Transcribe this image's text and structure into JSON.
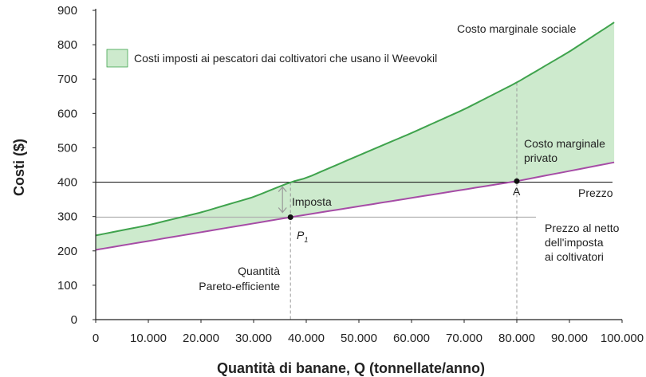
{
  "colors": {
    "social_curve": "#3fa34d",
    "private_curve": "#a64ca6",
    "shaded_area": "#cdeacd",
    "shaded_area_border": "#3fa34d",
    "price_line": "#222222",
    "net_price_line": "#b0b0b0",
    "dashed_line": "#999999",
    "arrow": "#999999"
  },
  "chart_data": {
    "type": "line",
    "xlabel": "Quantità di banane, Q (tonnellate/anno)",
    "ylabel": "Costi ($)",
    "xlim": [
      0,
      100000
    ],
    "ylim": [
      0,
      900
    ],
    "x_ticks": [
      0,
      10000,
      20000,
      30000,
      40000,
      50000,
      60000,
      70000,
      80000,
      90000,
      100000
    ],
    "x_tick_labels": [
      "0",
      "10.000",
      "20.000",
      "30.000",
      "40.000",
      "50.000",
      "60.000",
      "70.000",
      "80.000",
      "90.000",
      "100.000"
    ],
    "y_ticks": [
      0,
      100,
      200,
      300,
      400,
      500,
      600,
      700,
      800,
      900
    ],
    "y_tick_labels": [
      "0",
      "100",
      "200",
      "300",
      "400",
      "500",
      "600",
      "700",
      "800",
      "900"
    ],
    "grid": false,
    "legend_position": "top-left",
    "legend": {
      "label": "Costi imposti ai pescatori dai coltivatori che usano il Weevokil"
    },
    "series": [
      {
        "name": "Costo marginale sociale",
        "x": [
          0,
          10000,
          20000,
          30000,
          37000,
          40000,
          50000,
          60000,
          70000,
          80000,
          90000,
          100000
        ],
        "values": [
          245,
          275,
          312,
          357,
          400,
          412,
          478,
          543,
          612,
          690,
          780,
          880
        ]
      },
      {
        "name": "Costo marginale privato",
        "x": [
          0,
          37000,
          80000,
          100000
        ],
        "values": [
          203,
          298,
          403,
          462
        ]
      }
    ],
    "horizontal_lines": [
      {
        "y": 400,
        "label": "Prezzo"
      },
      {
        "y": 298,
        "label": "Prezzo al netto dell'imposta ai coltivatori"
      }
    ],
    "vertical_lines": [
      {
        "x": 37000,
        "label": "Quantità Pareto-efficiente"
      },
      {
        "x": 80000
      }
    ],
    "points": [
      {
        "name": "A",
        "x": 80000,
        "y": 403
      },
      {
        "name": "P1",
        "x": 37000,
        "y": 298
      }
    ],
    "annotations": {
      "social_label": "Costo marginale sociale",
      "private_label_line1": "Costo marginale",
      "private_label_line2": "privato",
      "price_label": "Prezzo",
      "net_price_line1": "Prezzo al netto",
      "net_price_line2": "dell'imposta",
      "net_price_line3": "ai coltivatori",
      "tax_label": "Imposta",
      "point_a": "A",
      "point_p": "P",
      "point_p_sub": "1",
      "pareto_line1": "Quantità",
      "pareto_line2": "Pareto-efficiente"
    }
  }
}
